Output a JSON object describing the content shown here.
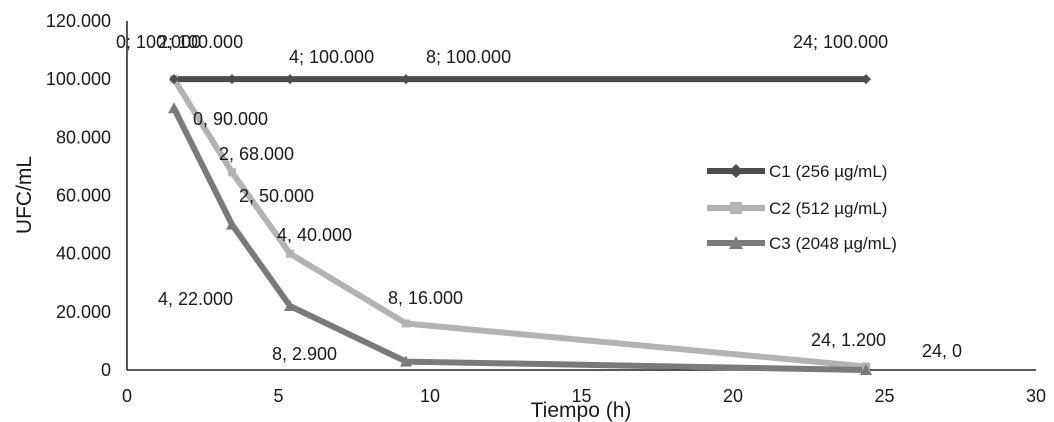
{
  "chart_data": {
    "type": "line",
    "xlabel": "Tiempo (h)",
    "ylabel": "UFC/mL",
    "xlim": [
      0,
      30
    ],
    "ylim": [
      0,
      120000
    ],
    "x_ticks": [
      0,
      5,
      10,
      15,
      20,
      25,
      30
    ],
    "x_tick_labels": [
      "0",
      "5",
      "10",
      "15",
      "20",
      "25",
      "30"
    ],
    "y_ticks": [
      0,
      20000,
      40000,
      60000,
      80000,
      100000,
      120000
    ],
    "y_tick_labels": [
      "0",
      "20.000",
      "40.000",
      "60.000",
      "80.000",
      "100.000",
      "120.000"
    ],
    "grid": false,
    "legend_position": "right",
    "series": [
      {
        "name": "C1 (256 µg/mL)",
        "color": "#4d4d4d",
        "marker": "diamond",
        "x": [
          0,
          2,
          4,
          8,
          24
        ],
        "y": [
          100000,
          100000,
          100000,
          100000,
          100000
        ],
        "labels": [
          "0; 100.000",
          "2; 100.000",
          "4; 100.000",
          "8; 100.000",
          "24; 100.000"
        ]
      },
      {
        "name": "C2 (512 µg/mL)",
        "color": "#b3b3b3",
        "marker": "square",
        "x": [
          0,
          2,
          4,
          8,
          24
        ],
        "y": [
          100000,
          68000,
          40000,
          16000,
          1200
        ],
        "labels": [
          "",
          "2, 68.000",
          "4, 40.000",
          "8, 16.000",
          "24, 1.200"
        ]
      },
      {
        "name": "C3 (2048 µg/mL)",
        "color": "#7a7a7a",
        "marker": "triangle",
        "x": [
          0,
          2,
          4,
          8,
          24
        ],
        "y": [
          90000,
          50000,
          22000,
          2900,
          0
        ],
        "labels": [
          "0, 90.000",
          "2, 50.000",
          "4, 22.000",
          "8, 2.900",
          "24, 0"
        ]
      }
    ]
  }
}
